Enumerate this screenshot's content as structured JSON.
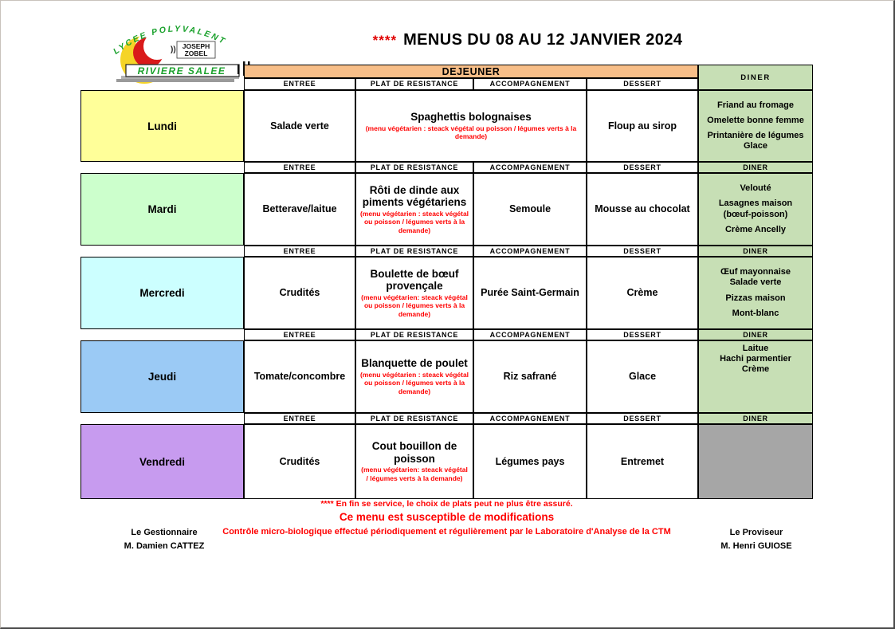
{
  "title": {
    "stars": "****",
    "text": "MENUS DU 08 AU 12 JANVIER 2024"
  },
  "logo": {
    "arc_text": "LYCEE  POLYVALENT",
    "center_name_line1": "JOSEPH",
    "center_name_line2": "ZOBEL",
    "banner_text": "RIVIERE SALEE"
  },
  "colors": {
    "dejeuner_bg": "#F7BE88",
    "diner_bg": "#C7DFB5",
    "note_red": "#FF0000",
    "logo_green": "#1AA12C",
    "logo_yellow": "#F5D427",
    "logo_red": "#D91A1A"
  },
  "table": {
    "dejeuner_label": "DEJEUNER",
    "diner_label": "DINER",
    "col_headers": [
      "ENTREE",
      "PLAT DE RESISTANCE",
      "ACCOMPAGNEMENT",
      "DESSERT"
    ],
    "days": [
      {
        "name": "Lundi",
        "color": "#FFFF99",
        "entree": "Salade verte",
        "plat": "Spaghettis bolognaises",
        "plat_note": "(menu végétarien : steack végétal ou poisson / légumes verts à la demande)",
        "dessert": "Floup au sirop",
        "diner_color": "#C7DFB5",
        "diner": [
          "Friand au fromage",
          "Omelette bonne femme",
          "Printanière de légumes\nGlace"
        ]
      },
      {
        "name": "Mardi",
        "color": "#CCFFCC",
        "entree": "Betterave/laitue",
        "plat": "Rôti de dinde aux piments végétariens",
        "plat_note": "(menu végétarien : steack végétal ou poisson / légumes verts à la demande)",
        "accompagnement": "Semoule",
        "dessert": "Mousse au chocolat",
        "diner_color": "#C7DFB5",
        "diner": [
          "Velouté",
          "Lasagnes maison\n(bœuf-poisson)",
          "Crème Ancelly"
        ]
      },
      {
        "name": "Mercredi",
        "color": "#CCFFFF",
        "entree": "Crudités",
        "plat": "Boulette de bœuf provençale",
        "plat_note": "(menu végétarien: steack végétal ou poisson / légumes verts à la demande)",
        "accompagnement": "Purée Saint-Germain",
        "dessert": "Crème",
        "diner_color": "#C7DFB5",
        "diner": [
          "Œuf mayonnaise\nSalade verte",
          "Pizzas maison",
          "Mont-blanc"
        ]
      },
      {
        "name": "Jeudi",
        "color": "#9BCAF5",
        "entree": "Tomate/concombre",
        "plat": "Blanquette de poulet",
        "plat_note": "(menu végétarien : steack végétal ou poisson / légumes verts à la demande)",
        "accompagnement": "Riz safrané",
        "dessert": "Glace",
        "diner_color": "#C7DFB5",
        "diner": [
          "Laitue\nHachi parmentier\nCrème"
        ]
      },
      {
        "name": "Vendredi",
        "color": "#C79BEF",
        "entree": "Crudités",
        "plat": "Cout bouillon de poisson",
        "plat_note": "(menu végétarien: steack végétal / légumes verts à la demande)",
        "accompagnement": "Légumes pays",
        "dessert": "Entremet",
        "diner_color": "#A6A6A6",
        "diner": []
      }
    ]
  },
  "footer": {
    "notice_line1": "**** En fin se service, le choix de plats peut ne plus être assuré.",
    "notice_line2": "Ce menu est susceptible de modifications",
    "notice_line3": "Contrôle micro-biologique effectué périodiquement et régulièrement par le Laboratoire d'Analyse de la CTM",
    "left_role": "Le Gestionnaire",
    "left_name": "M. Damien CATTEZ",
    "right_role": "Le Proviseur",
    "right_name": "M. Henri GUIOSE"
  }
}
